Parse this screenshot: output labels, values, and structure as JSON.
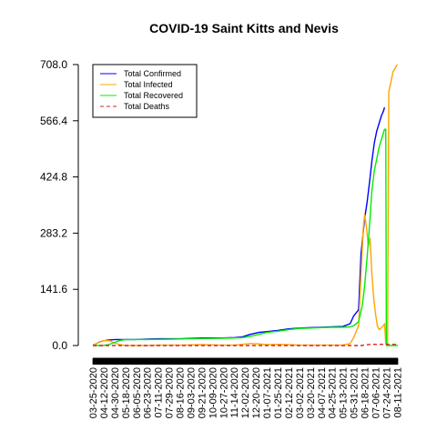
{
  "chart_data": {
    "type": "line",
    "title": "COVID-19 Saint Kitts and Nevis",
    "xlabel": "",
    "ylabel": "",
    "ylim": [
      0,
      708.0
    ],
    "x_range": [
      "2020-03-25",
      "2021-08-12"
    ],
    "y_ticks": [
      "0.0",
      "141.6",
      "283.2",
      "424.8",
      "566.4",
      "708.0"
    ],
    "y_tick_values": [
      0,
      141.6,
      283.2,
      424.8,
      566.4,
      708.0
    ],
    "x_tick_labels": [
      "03-25-2020",
      "04-12-2020",
      "04-30-2020",
      "05-18-2020",
      "06-05-2020",
      "06-23-2020",
      "07-11-2020",
      "07-29-2020",
      "08-16-2020",
      "09-03-2020",
      "09-21-2020",
      "10-09-2020",
      "10-27-2020",
      "11-14-2020",
      "12-02-2020",
      "12-20-2020",
      "01-07-2021",
      "01-25-2021",
      "02-12-2021",
      "03-02-2021",
      "03-20-2021",
      "04-07-2021",
      "04-25-2021",
      "05-13-2021",
      "05-31-2021",
      "06-18-2021",
      "07-06-2021",
      "07-24-2021",
      "08-11-2021"
    ],
    "legend": {
      "position": "top-left",
      "entries": [
        "Total Confirmed",
        "Total Infected",
        "Total Recovered",
        "Total Deaths"
      ]
    },
    "series": [
      {
        "name": "Total Confirmed",
        "color": "#0000ff",
        "dash": "solid",
        "points": [
          [
            "2020-03-25",
            1
          ],
          [
            "2020-03-30",
            4
          ],
          [
            "2020-04-05",
            9
          ],
          [
            "2020-04-12",
            12
          ],
          [
            "2020-04-20",
            14
          ],
          [
            "2020-05-01",
            15
          ],
          [
            "2020-06-01",
            15
          ],
          [
            "2020-07-11",
            17
          ],
          [
            "2020-08-16",
            17
          ],
          [
            "2020-09-21",
            19
          ],
          [
            "2020-10-27",
            19
          ],
          [
            "2020-11-14",
            20
          ],
          [
            "2020-11-28",
            22
          ],
          [
            "2020-12-10",
            28
          ],
          [
            "2020-12-25",
            33
          ],
          [
            "2021-01-07",
            35
          ],
          [
            "2021-01-25",
            38
          ],
          [
            "2021-02-12",
            42
          ],
          [
            "2021-03-02",
            44
          ],
          [
            "2021-03-20",
            45
          ],
          [
            "2021-04-07",
            46
          ],
          [
            "2021-04-25",
            47
          ],
          [
            "2021-05-13",
            48
          ],
          [
            "2021-05-25",
            55
          ],
          [
            "2021-05-31",
            75
          ],
          [
            "2021-06-08",
            90
          ],
          [
            "2021-06-12",
            230
          ],
          [
            "2021-06-18",
            320
          ],
          [
            "2021-06-22",
            360
          ],
          [
            "2021-06-26",
            410
          ],
          [
            "2021-06-30",
            465
          ],
          [
            "2021-07-04",
            510
          ],
          [
            "2021-07-08",
            540
          ],
          [
            "2021-07-12",
            560
          ],
          [
            "2021-07-16",
            580
          ],
          [
            "2021-07-19",
            590
          ],
          [
            "2021-07-21",
            600
          ]
        ]
      },
      {
        "name": "Total Infected",
        "color": "#ffa500",
        "dash": "solid",
        "points": [
          [
            "2020-03-25",
            1
          ],
          [
            "2020-03-30",
            4
          ],
          [
            "2020-04-05",
            9
          ],
          [
            "2020-04-12",
            12
          ],
          [
            "2020-04-22",
            12
          ],
          [
            "2020-04-30",
            6
          ],
          [
            "2020-05-10",
            2
          ],
          [
            "2020-05-18",
            0
          ],
          [
            "2020-06-23",
            0
          ],
          [
            "2020-07-11",
            1
          ],
          [
            "2020-08-16",
            1
          ],
          [
            "2020-09-21",
            2
          ],
          [
            "2020-10-27",
            1
          ],
          [
            "2020-11-14",
            1
          ],
          [
            "2020-11-28",
            3
          ],
          [
            "2020-12-10",
            5
          ],
          [
            "2020-12-25",
            4
          ],
          [
            "2021-01-07",
            2
          ],
          [
            "2021-01-25",
            3
          ],
          [
            "2021-02-12",
            2
          ],
          [
            "2021-03-02",
            1
          ],
          [
            "2021-03-20",
            1
          ],
          [
            "2021-04-07",
            1
          ],
          [
            "2021-04-25",
            1
          ],
          [
            "2021-05-13",
            1
          ],
          [
            "2021-05-25",
            5
          ],
          [
            "2021-05-31",
            20
          ],
          [
            "2021-06-08",
            50
          ],
          [
            "2021-06-12",
            180
          ],
          [
            "2021-06-16",
            300
          ],
          [
            "2021-06-18",
            330
          ],
          [
            "2021-06-21",
            300
          ],
          [
            "2021-06-24",
            250
          ],
          [
            "2021-06-27",
            270
          ],
          [
            "2021-06-30",
            180
          ],
          [
            "2021-07-03",
            120
          ],
          [
            "2021-07-06",
            80
          ],
          [
            "2021-07-09",
            50
          ],
          [
            "2021-07-12",
            40
          ],
          [
            "2021-07-16",
            45
          ],
          [
            "2021-07-19",
            50
          ],
          [
            "2021-07-21",
            55
          ],
          [
            "2021-07-23",
            5
          ],
          [
            "2021-07-26",
            0
          ],
          [
            "2021-07-28",
            640
          ],
          [
            "2021-07-31",
            660
          ],
          [
            "2021-08-04",
            690
          ],
          [
            "2021-08-08",
            700
          ],
          [
            "2021-08-11",
            708
          ]
        ]
      },
      {
        "name": "Total Recovered",
        "color": "#00ee00",
        "dash": "solid",
        "points": [
          [
            "2020-03-25",
            0
          ],
          [
            "2020-04-10",
            0
          ],
          [
            "2020-04-20",
            2
          ],
          [
            "2020-04-30",
            8
          ],
          [
            "2020-05-10",
            13
          ],
          [
            "2020-05-18",
            15
          ],
          [
            "2020-06-23",
            15
          ],
          [
            "2020-07-29",
            16
          ],
          [
            "2020-09-03",
            17
          ],
          [
            "2020-10-09",
            18
          ],
          [
            "2020-11-14",
            19
          ],
          [
            "2020-11-28",
            20
          ],
          [
            "2020-12-10",
            23
          ],
          [
            "2020-12-25",
            28
          ],
          [
            "2021-01-07",
            33
          ],
          [
            "2021-01-25",
            36
          ],
          [
            "2021-02-12",
            40
          ],
          [
            "2021-03-02",
            43
          ],
          [
            "2021-03-20",
            44
          ],
          [
            "2021-04-07",
            45
          ],
          [
            "2021-04-25",
            46
          ],
          [
            "2021-05-13",
            46
          ],
          [
            "2021-05-25",
            47
          ],
          [
            "2021-05-31",
            50
          ],
          [
            "2021-06-08",
            60
          ],
          [
            "2021-06-14",
            100
          ],
          [
            "2021-06-18",
            150
          ],
          [
            "2021-06-22",
            220
          ],
          [
            "2021-06-26",
            300
          ],
          [
            "2021-06-30",
            390
          ],
          [
            "2021-07-04",
            440
          ],
          [
            "2021-07-08",
            470
          ],
          [
            "2021-07-12",
            500
          ],
          [
            "2021-07-16",
            520
          ],
          [
            "2021-07-19",
            535
          ],
          [
            "2021-07-21",
            545
          ],
          [
            "2021-07-23",
            545
          ],
          [
            "2021-07-24",
            0
          ],
          [
            "2021-08-12",
            0
          ]
        ]
      },
      {
        "name": "Total Deaths",
        "color": "#dd2222",
        "dash": "dashed",
        "points": [
          [
            "2020-03-25",
            0
          ],
          [
            "2021-06-14",
            0
          ],
          [
            "2021-06-16",
            1
          ],
          [
            "2021-06-20",
            2
          ],
          [
            "2021-07-01",
            3
          ],
          [
            "2021-08-12",
            3
          ]
        ]
      }
    ]
  }
}
